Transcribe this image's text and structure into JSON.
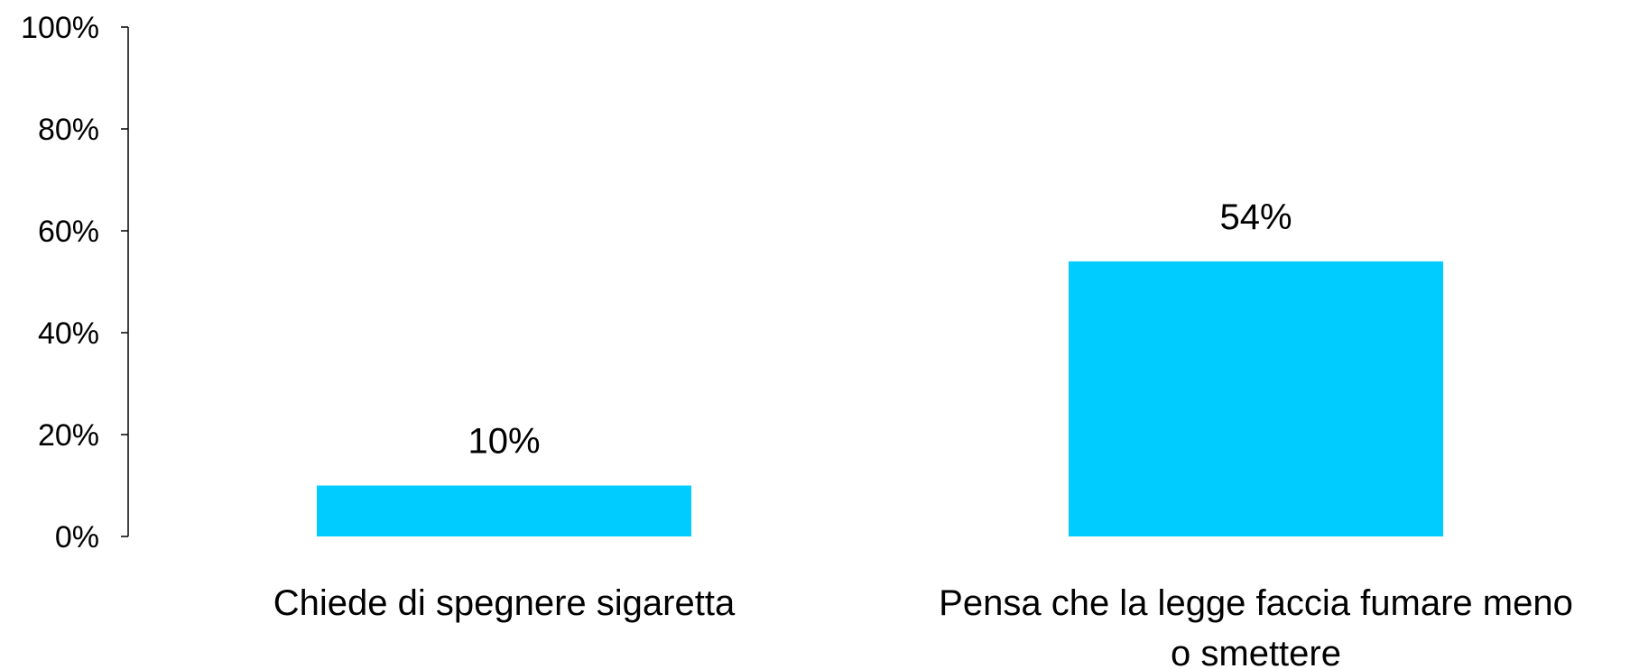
{
  "chart_data": {
    "type": "bar",
    "categories": [
      [
        "Chiede di spegnere sigaretta"
      ],
      [
        "Pensa che la legge faccia fumare meno",
        "o smettere"
      ]
    ],
    "values": [
      10,
      54
    ],
    "data_labels": [
      "10%",
      "54%"
    ],
    "ylim": [
      0,
      100
    ],
    "yticks": [
      0,
      20,
      40,
      60,
      80,
      100
    ],
    "ytick_labels": [
      "0%",
      "20%",
      "40%",
      "60%",
      "80%",
      "100%"
    ],
    "grid": false,
    "legend": false,
    "colors": {
      "bar": "#00CCFF",
      "axis": "#000000"
    }
  }
}
